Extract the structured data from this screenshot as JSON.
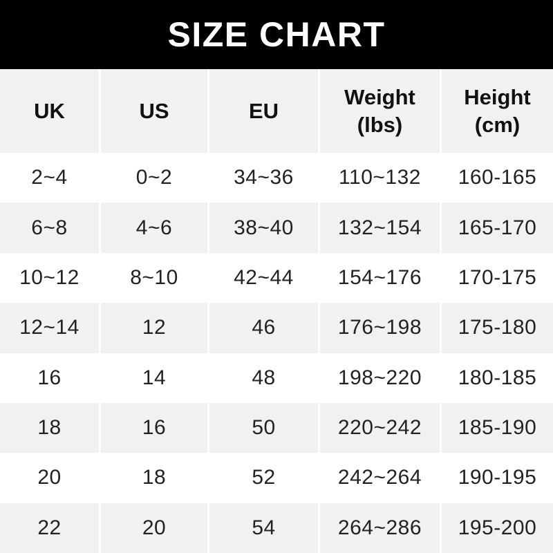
{
  "title": "SIZE CHART",
  "colors": {
    "title_bar_bg": "#000000",
    "title_text": "#ffffff",
    "header_cell_bg": "#f1f1f1",
    "header_cell_text": "#111111",
    "row_bg": "#ffffff",
    "row_alt_bg": "#f1f1f1",
    "cell_text": "#222222",
    "separator": "#ffffff"
  },
  "chart_data": {
    "type": "table",
    "title": "SIZE CHART",
    "columns": [
      {
        "key": "uk",
        "label": "UK",
        "sublabel": ""
      },
      {
        "key": "us",
        "label": "US",
        "sublabel": ""
      },
      {
        "key": "eu",
        "label": "EU",
        "sublabel": ""
      },
      {
        "key": "weight",
        "label": "Weight",
        "sublabel": "(lbs)"
      },
      {
        "key": "height",
        "label": "Height",
        "sublabel": "(cm)"
      }
    ],
    "rows": [
      [
        "2~4",
        "0~2",
        "34~36",
        "110~132",
        "160-165"
      ],
      [
        "6~8",
        "4~6",
        "38~40",
        "132~154",
        "165-170"
      ],
      [
        "10~12",
        "8~10",
        "42~44",
        "154~176",
        "170-175"
      ],
      [
        "12~14",
        "12",
        "46",
        "176~198",
        "175-180"
      ],
      [
        "16",
        "14",
        "48",
        "198~220",
        "180-185"
      ],
      [
        "18",
        "16",
        "50",
        "220~242",
        "185-190"
      ],
      [
        "20",
        "18",
        "52",
        "242~264",
        "190-195"
      ],
      [
        "22",
        "20",
        "54",
        "264~286",
        "195-200"
      ]
    ]
  }
}
